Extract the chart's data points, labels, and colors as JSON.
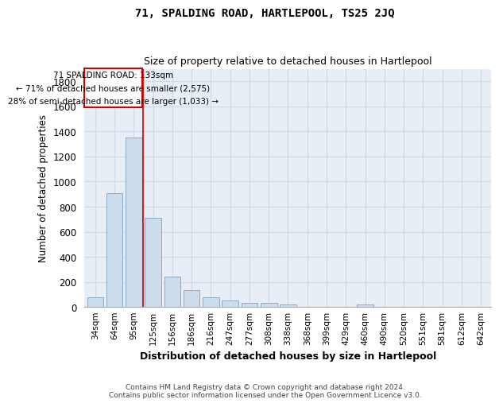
{
  "title": "71, SPALDING ROAD, HARTLEPOOL, TS25 2JQ",
  "subtitle": "Size of property relative to detached houses in Hartlepool",
  "xlabel": "Distribution of detached houses by size in Hartlepool",
  "ylabel": "Number of detached properties",
  "categories": [
    "34sqm",
    "64sqm",
    "95sqm",
    "125sqm",
    "156sqm",
    "186sqm",
    "216sqm",
    "247sqm",
    "277sqm",
    "308sqm",
    "338sqm",
    "368sqm",
    "399sqm",
    "429sqm",
    "460sqm",
    "490sqm",
    "520sqm",
    "551sqm",
    "581sqm",
    "612sqm",
    "642sqm"
  ],
  "values": [
    80,
    910,
    1350,
    710,
    245,
    135,
    80,
    55,
    30,
    30,
    20,
    0,
    0,
    0,
    20,
    0,
    0,
    0,
    0,
    0,
    0
  ],
  "bar_color": "#ccdcec",
  "bar_edge_color": "#88aac8",
  "property_label": "71 SPALDING ROAD: 133sqm",
  "annotation_line1": "← 71% of detached houses are smaller (2,575)",
  "annotation_line2": "28% of semi-detached houses are larger (1,033) →",
  "vline_color": "#cc0000",
  "box_edge_color": "#cc0000",
  "vline_x": 2.5,
  "ylim": [
    0,
    1900
  ],
  "yticks": [
    0,
    200,
    400,
    600,
    800,
    1000,
    1200,
    1400,
    1600,
    1800
  ],
  "bg_color": "#e8eef6",
  "grid_color": "#d0d8e4",
  "footnote_line1": "Contains HM Land Registry data © Crown copyright and database right 2024.",
  "footnote_line2": "Contains public sector information licensed under the Open Government Licence v3.0."
}
